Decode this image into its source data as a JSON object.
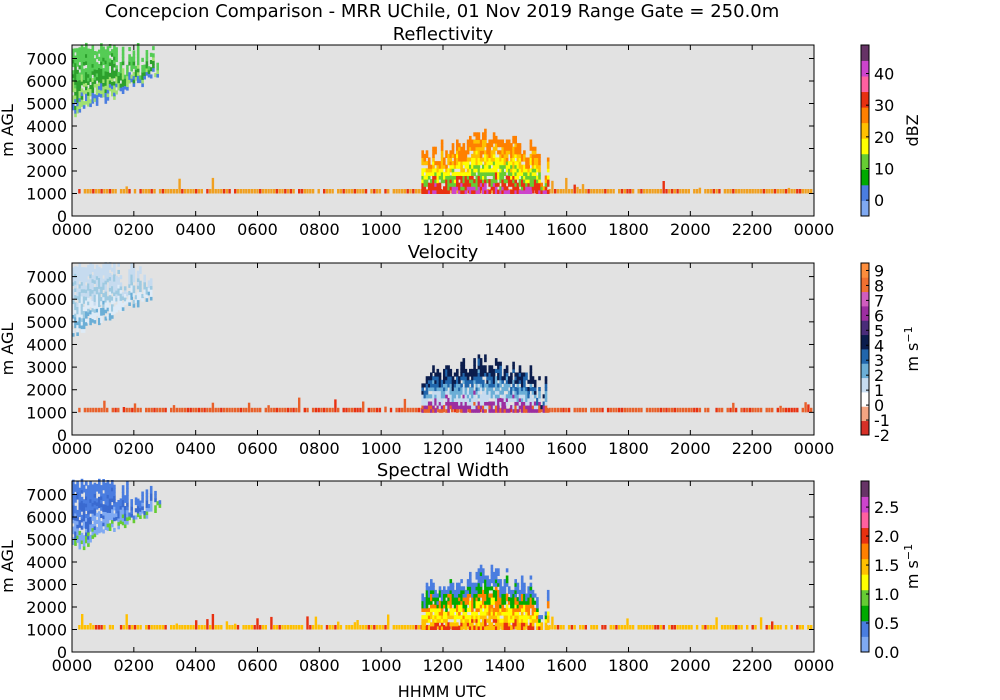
{
  "figure": {
    "suptitle": "Concepcion Comparison - MRR UChile, 01 Nov 2019 Range Gate = 250.0m",
    "xlabel": "HHMM UTC"
  },
  "x_ticks": [
    "0000",
    "0200",
    "0400",
    "0600",
    "0800",
    "1000",
    "1200",
    "1400",
    "1600",
    "1800",
    "2000",
    "2200",
    "0000"
  ],
  "y_ticks": [
    "0",
    "1000",
    "2000",
    "3000",
    "4000",
    "5000",
    "6000",
    "7000"
  ],
  "chart_data": [
    {
      "type": "heatmap",
      "title": "Reflectivity",
      "ylabel": "m AGL",
      "cbar_label": "dBZ",
      "xlim_hours": [
        0,
        24
      ],
      "ylim_m": [
        0,
        7600
      ],
      "grid": false,
      "cbar_range": [
        -5,
        49
      ],
      "cbar_ticks": [
        "0",
        "10",
        "20",
        "30",
        "40"
      ],
      "cbar_colors": [
        "#7fa9f2",
        "#4a7de0",
        "#00aa00",
        "#66cc33",
        "#ffff00",
        "#ffc000",
        "#ff8000",
        "#e83010",
        "#ff60a0",
        "#cc44cc",
        "#663366"
      ],
      "bright_band": {
        "top_m": 1200,
        "base_m": 1000,
        "color": "#f0a020"
      },
      "features": [
        {
          "name": "high cloud",
          "t_start": 0.0,
          "t_end": 2.8,
          "h_low": 4300,
          "h_high": 7600,
          "colors": [
            "#55cc55",
            "#2ca02c",
            "#a0e070",
            "#4a7de0"
          ]
        },
        {
          "name": "precipitation event",
          "t_start": 11.3,
          "t_end": 15.4,
          "h_low": 1000,
          "h_high": 3900,
          "colors": [
            "#ff8000",
            "#ffc000",
            "#ffff00",
            "#66cc33",
            "#e83010",
            "#cc44cc"
          ]
        }
      ]
    },
    {
      "type": "heatmap",
      "title": "Velocity",
      "ylabel": "m AGL",
      "cbar_label": "m s",
      "cbar_label_sup": "−1",
      "xlim_hours": [
        0,
        24
      ],
      "ylim_m": [
        0,
        7600
      ],
      "grid": false,
      "cbar_range": [
        -2,
        9.5
      ],
      "cbar_ticks": [
        "-2",
        "-1",
        "0",
        "1",
        "2",
        "3",
        "4",
        "5",
        "6",
        "7",
        "8",
        "9"
      ],
      "cbar_colors": [
        "#d73027",
        "#f4a582",
        "#ffffff",
        "#c6dbef",
        "#6baed6",
        "#2166ac",
        "#0b1d4d",
        "#4a2c7a",
        "#9c2ea0",
        "#d05dbf",
        "#f07030",
        "#fd8d3c"
      ],
      "bright_band": {
        "top_m": 1200,
        "base_m": 1000,
        "color": "#e8602a"
      },
      "features": [
        {
          "name": "high cloud",
          "t_start": 0.0,
          "t_end": 2.8,
          "h_low": 4300,
          "h_high": 7600,
          "colors": [
            "#c6dbef",
            "#9ecae1",
            "#deebf7",
            "#6baed6"
          ]
        },
        {
          "name": "precipitation event",
          "t_start": 11.3,
          "t_end": 15.4,
          "h_low": 1000,
          "h_high": 3700,
          "colors": [
            "#0b1d4d",
            "#2166ac",
            "#6baed6",
            "#c6dbef",
            "#9c2ea0",
            "#e8602a"
          ]
        }
      ]
    },
    {
      "type": "heatmap",
      "title": "Spectral Width",
      "ylabel": "m AGL",
      "cbar_label": "m s",
      "cbar_label_sup": "−1",
      "xlim_hours": [
        0,
        24
      ],
      "ylim_m": [
        0,
        7600
      ],
      "grid": false,
      "cbar_range": [
        0,
        2.95
      ],
      "cbar_ticks": [
        "0.0",
        "0.5",
        "1.0",
        "1.5",
        "2.0",
        "2.5"
      ],
      "cbar_colors": [
        "#7fa9f2",
        "#4a7de0",
        "#00aa00",
        "#66cc33",
        "#ffff00",
        "#ffc000",
        "#ff8000",
        "#e83010",
        "#ff60a0",
        "#cc44cc",
        "#663366"
      ],
      "bright_band": {
        "top_m": 1200,
        "base_m": 1000,
        "color": "#ffc000"
      },
      "features": [
        {
          "name": "high cloud",
          "t_start": 0.0,
          "t_end": 2.8,
          "h_low": 4300,
          "h_high": 7600,
          "colors": [
            "#4a7de0",
            "#3a6ad0",
            "#7fa9f2",
            "#66cc33"
          ]
        },
        {
          "name": "precipitation event",
          "t_start": 11.3,
          "t_end": 15.4,
          "h_low": 1000,
          "h_high": 3900,
          "colors": [
            "#4a7de0",
            "#00aa00",
            "#ff8000",
            "#ffff00",
            "#ffc000",
            "#e83010"
          ]
        }
      ]
    }
  ]
}
